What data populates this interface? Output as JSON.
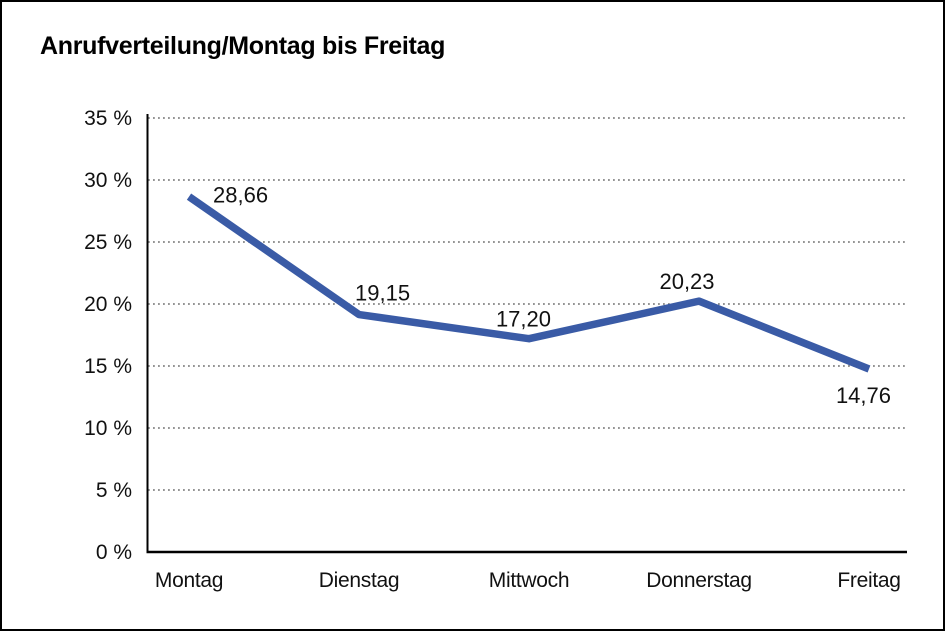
{
  "title": "Anrufverteilung/Montag bis Freitag",
  "colors": {
    "line": "#3A5BA6",
    "grid": "#555555",
    "axis": "#000000",
    "text": "#111111",
    "background": "#FFFFFF",
    "border": "#000000"
  },
  "chart_data": {
    "type": "line",
    "title": "Anrufverteilung/Montag bis Freitag",
    "categories": [
      "Montag",
      "Dienstag",
      "Mittwoch",
      "Donnerstag",
      "Freitag"
    ],
    "values": [
      28.66,
      19.15,
      17.2,
      20.23,
      14.76
    ],
    "point_labels": [
      "28,66",
      "19,15",
      "17,20",
      "20,23",
      "14,76"
    ],
    "xlabel": "",
    "ylabel": "",
    "ylim": [
      0,
      35
    ],
    "ytick_step": 5,
    "ytick_labels": [
      "0 %",
      "5 %",
      "10 %",
      "15 %",
      "20 %",
      "25 %",
      "30 %",
      "35 %"
    ],
    "grid": "horizontal-dotted",
    "legend_position": "none"
  }
}
